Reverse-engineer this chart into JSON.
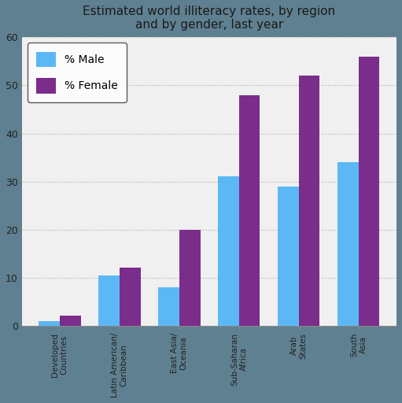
{
  "title": "Estimated world illiteracy rates, by region\nand by gender, last year",
  "categories": [
    "Developed\nCountries",
    "Latin American/\nCaribbean",
    "East Asia/\nOceania",
    "Sub-Saharan\nAfrica",
    "Arab\nStates",
    "South\nAsia"
  ],
  "male_values": [
    1,
    10.5,
    8,
    31,
    29,
    34
  ],
  "female_values": [
    2,
    12,
    20,
    48,
    52,
    56
  ],
  "male_color": "#5BB8F5",
  "female_color": "#7B2D8B",
  "legend_labels": [
    "% Male",
    "% Female"
  ],
  "ylim": [
    0,
    60
  ],
  "yticks": [
    0,
    10,
    20,
    30,
    40,
    50,
    60
  ],
  "outer_background": "#5F8090",
  "plot_background": "#F0F0F0",
  "grid_color": "#AAAAAA",
  "title_fontsize": 11,
  "bar_width": 0.35
}
